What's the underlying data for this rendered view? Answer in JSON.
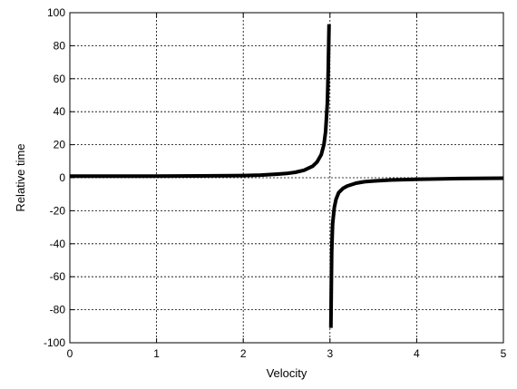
{
  "chart_data": {
    "type": "line",
    "xlabel": "Velocity",
    "ylabel": "Relative time",
    "xlim": [
      0,
      5
    ],
    "ylim": [
      -100,
      100
    ],
    "xticks": [
      0,
      1,
      2,
      3,
      4,
      5
    ],
    "yticks": [
      -100,
      -80,
      -60,
      -40,
      -20,
      0,
      20,
      40,
      60,
      80,
      100
    ],
    "grid": true,
    "line_color": "#000000",
    "series": [
      {
        "segments": [
          {
            "x": [
              0,
              0.5,
              1,
              1.5,
              2,
              2.2,
              2.4,
              2.5,
              2.6,
              2.7,
              2.8,
              2.85,
              2.9,
              2.93,
              2.95,
              2.97,
              2.98,
              2.99
            ],
            "y": [
              1,
              1,
              1,
              1.1,
              1.3,
              1.6,
              2.2,
              2.6,
              3.3,
              4.5,
              7,
              9.5,
              14,
              20,
              28,
              45,
              65,
              93
            ]
          },
          {
            "x": [
              3.01,
              3.02,
              3.03,
              3.05,
              3.07,
              3.1,
              3.15,
              3.2,
              3.3,
              3.4,
              3.5,
              3.7,
              4,
              4.5,
              5
            ],
            "y": [
              -91,
              -45,
              -28,
              -18,
              -13,
              -9,
              -6.5,
              -5,
              -3.3,
              -2.4,
              -2,
              -1.4,
              -1,
              -0.5,
              -0.3
            ]
          }
        ]
      }
    ]
  }
}
